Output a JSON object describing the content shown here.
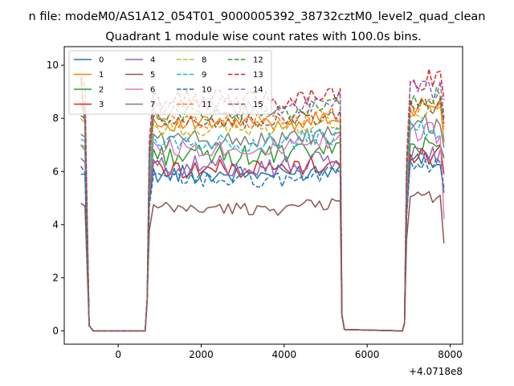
{
  "figure": {
    "suptitle": "n file: modeM0/AS1A12_054T01_9000005392_38732cztM0_level2_quad_clean",
    "offset_text": "+4.0718e8"
  },
  "chart_data": {
    "type": "line",
    "title": "Quadrant 1 module wise count rates with 100.0s bins.",
    "xlabel": "",
    "ylabel": "",
    "xlim": [
      -1300,
      8300
    ],
    "ylim": [
      -0.5,
      10.7
    ],
    "x_offset": 407180000,
    "xticks": [
      0,
      2000,
      4000,
      6000,
      8000
    ],
    "xtick_labels": [
      "0",
      "2000",
      "4000",
      "6000",
      "8000"
    ],
    "yticks": [
      0,
      2,
      4,
      6,
      8,
      10
    ],
    "ytick_labels": [
      "0",
      "2",
      "4",
      "6",
      "8",
      "10"
    ],
    "grid": false,
    "legend_position": "top-left",
    "legend_columns": 4,
    "segments": [
      {
        "x_start": -900,
        "x_end": -700
      },
      {
        "x_start": -600,
        "x_end": 650
      },
      {
        "x_start": 750,
        "x_end": 5350
      },
      {
        "x_start": 5450,
        "x_end": 6850
      },
      {
        "x_start": 6950,
        "x_end": 7850
      }
    ],
    "series": [
      {
        "name": "0",
        "color": "#1f77b4",
        "dash": "solid",
        "level": 5.9,
        "amp": 0.35,
        "start": 5.9,
        "end": 5.2
      },
      {
        "name": "1",
        "color": "#ff7f0e",
        "dash": "solid",
        "level": 7.8,
        "amp": 0.3,
        "start": 8.6,
        "end": 7.1
      },
      {
        "name": "2",
        "color": "#2ca02c",
        "dash": "solid",
        "level": 6.6,
        "amp": 0.4,
        "start": 7.0,
        "end": 6.5
      },
      {
        "name": "3",
        "color": "#d62728",
        "dash": "solid",
        "level": 6.1,
        "amp": 0.35,
        "start": 9.5,
        "end": 5.9
      },
      {
        "name": "4",
        "color": "#9467bd",
        "dash": "solid",
        "level": 6.2,
        "amp": 0.4,
        "start": 6.5,
        "end": 6.6
      },
      {
        "name": "5",
        "color": "#8c564b",
        "dash": "solid",
        "level": 4.6,
        "amp": 0.25,
        "start": 4.8,
        "end": 3.3
      },
      {
        "name": "6",
        "color": "#e377c2",
        "dash": "solid",
        "level": 6.9,
        "amp": 0.35,
        "start": 7.0,
        "end": 4.2
      },
      {
        "name": "7",
        "color": "#7f7f7f",
        "dash": "solid",
        "level": 7.2,
        "amp": 0.35,
        "start": 7.4,
        "end": 6.9
      },
      {
        "name": "8",
        "color": "#bcbd22",
        "dash": "dashed",
        "level": 7.6,
        "amp": 0.3,
        "start": 8.0,
        "end": 7.6
      },
      {
        "name": "9",
        "color": "#17becf",
        "dash": "dashed",
        "level": 7.1,
        "amp": 0.35,
        "start": 7.2,
        "end": 7.3
      },
      {
        "name": "10",
        "color": "#1f77b4",
        "dash": "dashed",
        "level": 5.7,
        "amp": 0.3,
        "start": 6.2,
        "end": 5.4
      },
      {
        "name": "11",
        "color": "#ff7f0e",
        "dash": "dashed",
        "level": 7.9,
        "amp": 0.3,
        "start": 8.4,
        "end": 7.7
      },
      {
        "name": "12",
        "color": "#2ca02c",
        "dash": "dashed",
        "level": 8.2,
        "amp": 0.35,
        "start": 8.5,
        "end": 8.2
      },
      {
        "name": "13",
        "color": "#d62728",
        "dash": "dashed",
        "level": 8.7,
        "amp": 0.4,
        "start": 9.6,
        "end": 8.7
      },
      {
        "name": "14",
        "color": "#9467bd",
        "dash": "dashed",
        "level": 8.4,
        "amp": 0.35,
        "start": 8.8,
        "end": 8.0
      },
      {
        "name": "15",
        "color": "#8c564b",
        "dash": "dashed",
        "level": 7.9,
        "amp": 0.3,
        "start": 8.1,
        "end": 7.8
      }
    ]
  }
}
